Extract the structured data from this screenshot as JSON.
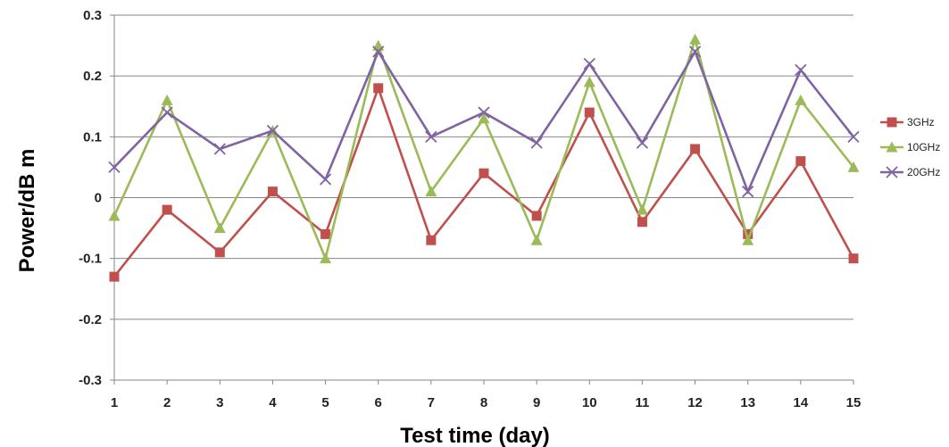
{
  "chart_data": {
    "type": "line",
    "title": "",
    "xlabel": "Test time (day)",
    "ylabel": "Power/dB m",
    "x": [
      1,
      2,
      3,
      4,
      5,
      6,
      7,
      8,
      9,
      10,
      11,
      12,
      13,
      14,
      15
    ],
    "xlim": [
      1,
      15
    ],
    "ylim": [
      -0.3,
      0.3
    ],
    "yticks": [
      "0.3",
      "0.2",
      "0.1",
      "0",
      "-0.1",
      "-0.2",
      "-0.3"
    ],
    "ytick_values": [
      0.3,
      0.2,
      0.1,
      0,
      -0.1,
      -0.2,
      -0.3
    ],
    "grid": "horizontal",
    "legend_position": "right",
    "series": [
      {
        "name": "3GHz",
        "color": "#c0504d",
        "marker": "square",
        "values": [
          -0.13,
          -0.02,
          -0.09,
          0.01,
          -0.06,
          0.18,
          -0.07,
          0.04,
          -0.03,
          0.14,
          -0.04,
          0.08,
          -0.06,
          0.06,
          -0.1
        ]
      },
      {
        "name": "10GHz",
        "color": "#9bbb59",
        "marker": "triangle",
        "values": [
          -0.03,
          0.16,
          -0.05,
          0.11,
          -0.1,
          0.25,
          0.01,
          0.13,
          -0.07,
          0.19,
          -0.02,
          0.26,
          -0.07,
          0.16,
          0.05
        ]
      },
      {
        "name": "20GHz",
        "color": "#8064a2",
        "marker": "x",
        "values": [
          0.05,
          0.14,
          0.08,
          0.11,
          0.03,
          0.24,
          0.1,
          0.14,
          0.09,
          0.22,
          0.09,
          0.24,
          0.01,
          0.21,
          0.1
        ]
      }
    ]
  }
}
